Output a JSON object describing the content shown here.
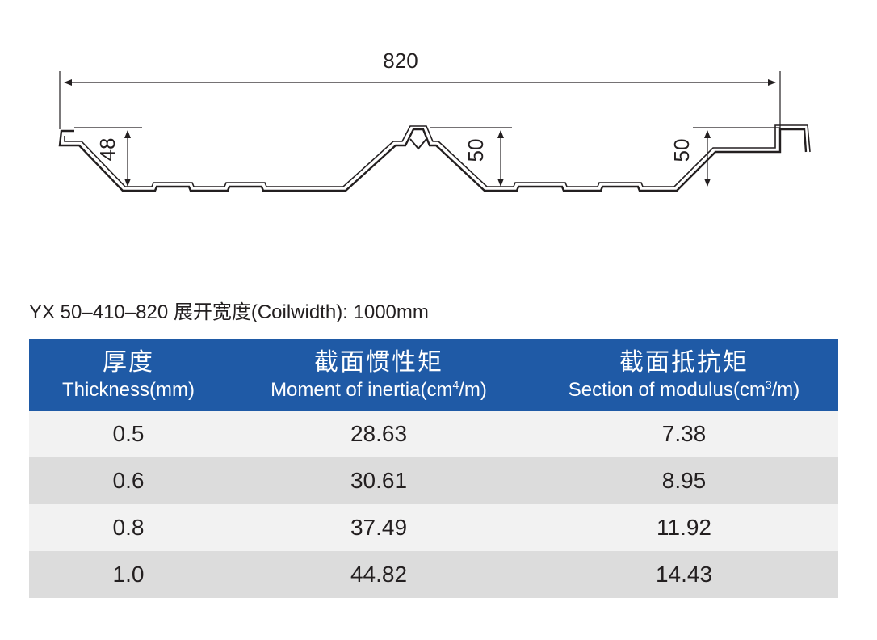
{
  "diagram": {
    "total_width_label": "820",
    "left_height_label": "48",
    "middle_height_label": "50",
    "right_height_label": "50"
  },
  "caption": "YX 50–410–820 展开宽度(Coilwidth): 1000mm",
  "table": {
    "headers": [
      {
        "cn": "厚度",
        "en": "Thickness(mm)"
      },
      {
        "cn": "截面惯性矩",
        "en": "Moment of inertia(cm",
        "sup": "4",
        "en_after": "/m)"
      },
      {
        "cn": "截面抵抗矩",
        "en": "Section of modulus(cm",
        "sup": "3",
        "en_after": "/m)"
      }
    ],
    "rows": [
      [
        "0.5",
        "28.63",
        "7.38"
      ],
      [
        "0.6",
        "30.61",
        "8.95"
      ],
      [
        "0.8",
        "37.49",
        "11.92"
      ],
      [
        "1.0",
        "44.82",
        "14.43"
      ]
    ],
    "colors": {
      "header_bg": "#1f5aa6",
      "row_light": "#f2f2f2",
      "row_dark": "#dcdcdc"
    }
  }
}
